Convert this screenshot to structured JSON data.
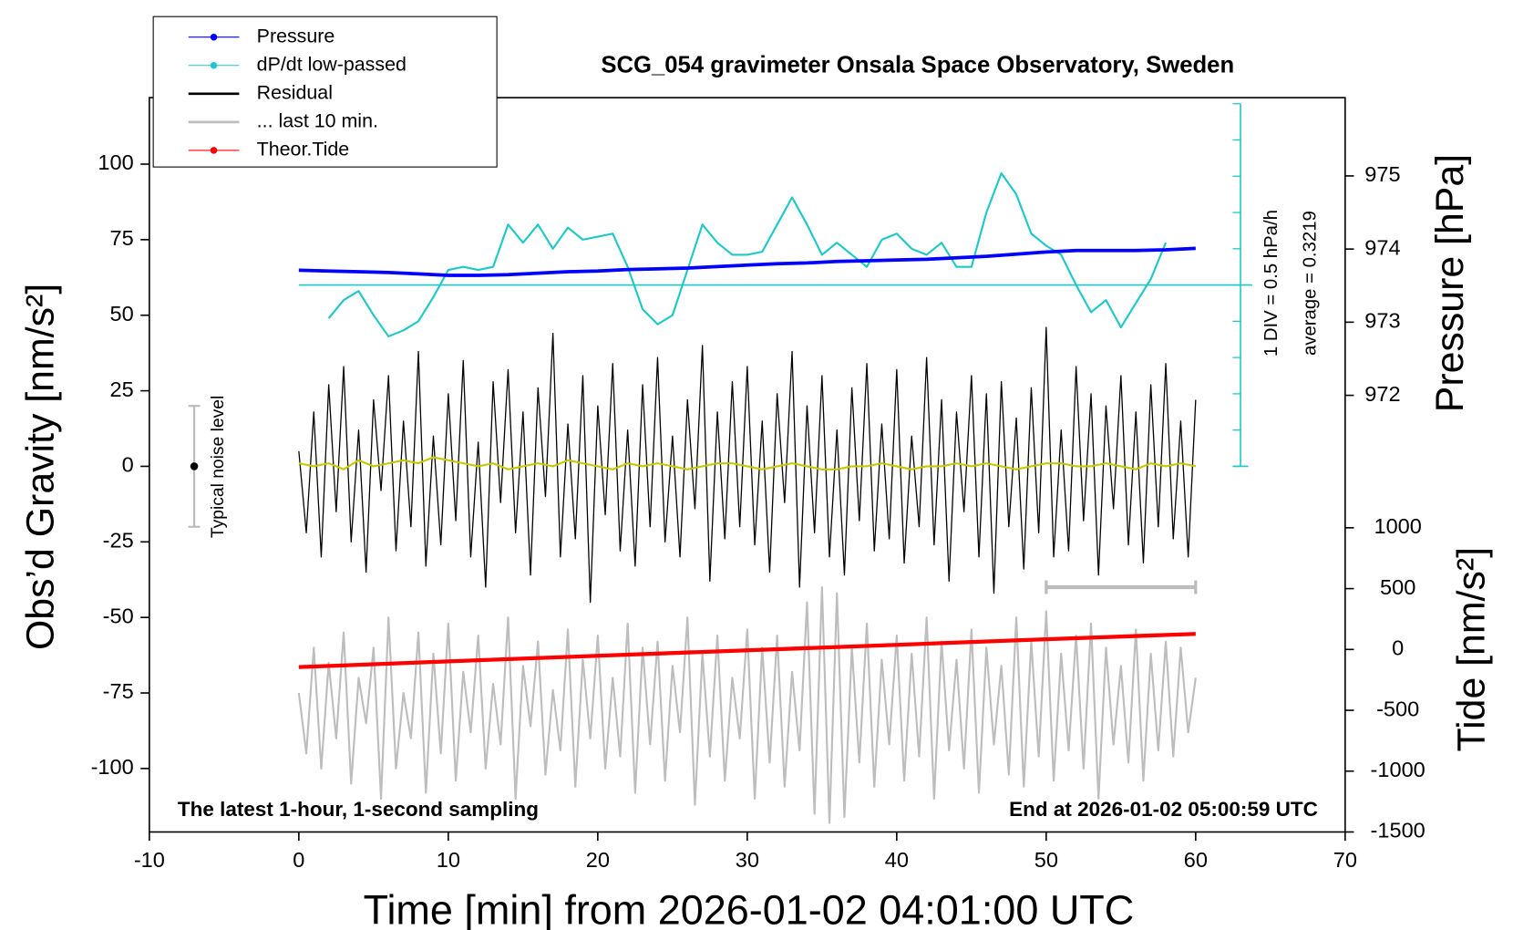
{
  "chart_data": {
    "type": "line",
    "title": "SCG_054 gravimeter Onsala Space Observatory, Sweden",
    "x_label": "Time [min] from 2026-01-02 04:01:00 UTC",
    "y_label": "Obs’d Gravity [nm/s²]",
    "y2_label": "Pressure [hPa]",
    "y3_label": "Tide [nm/s²]",
    "note_left": "The latest 1-hour, 1-second sampling",
    "note_right": "End at 2026-01-02 05:00:59 UTC",
    "dpdt_div_label": "1 DIV = 0.5 hPa/h",
    "dpdt_average_label": "average = 0.3219",
    "noise_label": "Typical noise level",
    "xlim": [
      -10,
      70
    ],
    "xticks": [
      -10,
      0,
      10,
      20,
      30,
      40,
      50,
      60,
      70
    ],
    "ylim": [
      -121,
      122
    ],
    "yticks": [
      -100,
      -75,
      -50,
      -25,
      0,
      25,
      50,
      75,
      100
    ],
    "y2lim": [
      966.03,
      976.07
    ],
    "y2ticks": [
      972,
      973,
      974,
      975
    ],
    "y3lim": [
      -1500,
      4535
    ],
    "y3ticks": [
      -1500,
      -1000,
      -500,
      0,
      500,
      1000
    ],
    "dpdt_axis_x": 63,
    "dpdt_ticks": [
      0,
      12,
      24,
      36,
      48,
      60,
      72,
      84,
      96,
      108,
      120
    ],
    "dpdt_average": 60,
    "noise_level": {
      "x": -7,
      "value": 0,
      "low": -20,
      "high": 20
    },
    "last10_bracket": {
      "x": [
        50,
        60
      ],
      "y": -40
    },
    "series": [
      {
        "name": "Pressure",
        "color": "#0000ff",
        "axis": "y2",
        "marker": true,
        "width": 3.5,
        "x": [
          0,
          2,
          4,
          6,
          8,
          10,
          12,
          14,
          16,
          18,
          20,
          22,
          24,
          26,
          28,
          30,
          32,
          34,
          36,
          38,
          40,
          42,
          44,
          46,
          48,
          50,
          52,
          54,
          56,
          58,
          60
        ],
        "values": [
          973.71,
          973.7,
          973.69,
          973.68,
          973.66,
          973.64,
          973.64,
          973.65,
          973.67,
          973.69,
          973.7,
          973.72,
          973.73,
          973.74,
          973.76,
          973.78,
          973.8,
          973.81,
          973.83,
          973.84,
          973.85,
          973.86,
          973.88,
          973.9,
          973.93,
          973.96,
          973.98,
          973.98,
          973.98,
          973.99,
          974.01
        ]
      },
      {
        "name": "dP/dt low-passed",
        "color": "#1ec8c8",
        "marker": true,
        "width": 2,
        "x": [
          2,
          3,
          4,
          5,
          6,
          7,
          8,
          9,
          10,
          11,
          12,
          13,
          14,
          15,
          16,
          17,
          18,
          19,
          20,
          21,
          22,
          23,
          24,
          25,
          26,
          27,
          28,
          29,
          30,
          31,
          32,
          33,
          34,
          35,
          36,
          37,
          38,
          39,
          40,
          41,
          42,
          43,
          44,
          45,
          46,
          47,
          48,
          49,
          50,
          51,
          52,
          53,
          54,
          55,
          56,
          57,
          58
        ],
        "values": [
          49,
          55,
          58,
          50,
          43,
          45,
          48,
          56,
          65,
          66,
          65,
          66,
          80,
          74,
          80,
          72,
          79,
          75,
          76,
          77,
          66,
          52,
          47,
          50,
          65,
          80,
          74,
          70,
          70,
          71,
          80,
          89,
          80,
          70,
          74,
          70,
          66,
          75,
          77,
          72,
          70,
          74,
          66,
          66,
          84,
          97,
          90,
          77,
          73,
          70,
          60,
          51,
          55,
          46,
          54,
          62,
          74
        ]
      },
      {
        "name": "Residual",
        "color": "#000000",
        "width": 1.2,
        "x": [
          0,
          0.5,
          1,
          1.5,
          2,
          2.5,
          3,
          3.5,
          4,
          4.5,
          5,
          5.5,
          6,
          6.5,
          7,
          7.5,
          8,
          8.5,
          9,
          9.5,
          10,
          10.5,
          11,
          11.5,
          12,
          12.5,
          13,
          13.5,
          14,
          14.5,
          15,
          15.5,
          16,
          16.5,
          17,
          17.5,
          18,
          18.5,
          19,
          19.5,
          20,
          20.5,
          21,
          21.5,
          22,
          22.5,
          23,
          23.5,
          24,
          24.5,
          25,
          25.5,
          26,
          26.5,
          27,
          27.5,
          28,
          28.5,
          29,
          29.5,
          30,
          30.5,
          31,
          31.5,
          32,
          32.5,
          33,
          33.5,
          34,
          34.5,
          35,
          35.5,
          36,
          36.5,
          37,
          37.5,
          38,
          38.5,
          39,
          39.5,
          40,
          40.5,
          41,
          41.5,
          42,
          42.5,
          43,
          43.5,
          44,
          44.5,
          45,
          45.5,
          46,
          46.5,
          47,
          47.5,
          48,
          48.5,
          49,
          49.5,
          50,
          50.5,
          51,
          51.5,
          52,
          52.5,
          53,
          53.5,
          54,
          54.5,
          55,
          55.5,
          56,
          56.5,
          57,
          57.5,
          58,
          58.5,
          59,
          59.5,
          60
        ],
        "values": [
          5,
          -22,
          18,
          -30,
          27,
          -15,
          33,
          -25,
          12,
          -35,
          22,
          -8,
          30,
          -28,
          15,
          -20,
          38,
          -33,
          10,
          -26,
          24,
          -18,
          35,
          -30,
          8,
          -40,
          28,
          -12,
          32,
          -22,
          18,
          -36,
          26,
          -10,
          44,
          -30,
          14,
          -24,
          30,
          -45,
          20,
          -16,
          34,
          -28,
          12,
          -33,
          27,
          -20,
          36,
          -25,
          10,
          -30,
          22,
          -14,
          40,
          -38,
          18,
          -24,
          28,
          -20,
          33,
          -26,
          15,
          -35,
          24,
          -12,
          38,
          -40,
          20,
          -22,
          30,
          -30,
          12,
          -36,
          26,
          -18,
          34,
          -28,
          14,
          -24,
          32,
          -32,
          10,
          -20,
          36,
          -26,
          22,
          -38,
          18,
          -15,
          30,
          -30,
          24,
          -42,
          28,
          -20,
          16,
          -34,
          26,
          -22,
          46,
          -30,
          12,
          -28,
          33,
          -18,
          24,
          -36,
          20,
          -14,
          30,
          -26,
          18,
          -32,
          27,
          -20,
          34,
          -24,
          15,
          -30,
          22
        ]
      },
      {
        "name": "... last 10 min.",
        "color": "#bdbdbd",
        "width": 2,
        "x": [
          0,
          0.5,
          1,
          1.5,
          2,
          2.5,
          3,
          3.5,
          4,
          4.5,
          5,
          5.5,
          6,
          6.5,
          7,
          7.5,
          8,
          8.5,
          9,
          9.5,
          10,
          10.5,
          11,
          11.5,
          12,
          12.5,
          13,
          13.5,
          14,
          14.5,
          15,
          15.5,
          16,
          16.5,
          17,
          17.5,
          18,
          18.5,
          19,
          19.5,
          20,
          20.5,
          21,
          21.5,
          22,
          22.5,
          23,
          23.5,
          24,
          24.5,
          25,
          25.5,
          26,
          26.5,
          27,
          27.5,
          28,
          28.5,
          29,
          29.5,
          30,
          30.5,
          31,
          31.5,
          32,
          32.5,
          33,
          33.5,
          34,
          34.5,
          35,
          35.5,
          36,
          36.5,
          37,
          37.5,
          38,
          38.5,
          39,
          39.5,
          40,
          40.5,
          41,
          41.5,
          42,
          42.5,
          43,
          43.5,
          44,
          44.5,
          45,
          45.5,
          46,
          46.5,
          47,
          47.5,
          48,
          48.5,
          49,
          49.5,
          50,
          50.5,
          51,
          51.5,
          52,
          52.5,
          53,
          53.5,
          54,
          54.5,
          55,
          55.5,
          56,
          56.5,
          57,
          57.5,
          58,
          58.5,
          59,
          59.5,
          60
        ],
        "values": [
          -75,
          -95,
          -60,
          -100,
          -65,
          -90,
          -55,
          -105,
          -70,
          -85,
          -60,
          -110,
          -50,
          -100,
          -75,
          -90,
          -55,
          -108,
          -62,
          -95,
          -52,
          -104,
          -68,
          -88,
          -56,
          -100,
          -72,
          -92,
          -50,
          -110,
          -66,
          -86,
          -58,
          -102,
          -74,
          -94,
          -54,
          -106,
          -64,
          -90,
          -56,
          -100,
          -70,
          -96,
          -52,
          -108,
          -60,
          -92,
          -58,
          -104,
          -66,
          -88,
          -50,
          -112,
          -62,
          -96,
          -56,
          -104,
          -70,
          -90,
          -54,
          -110,
          -60,
          -98,
          -56,
          -106,
          -68,
          -94,
          -45,
          -115,
          -40,
          -118,
          -42,
          -116,
          -60,
          -98,
          -52,
          -106,
          -64,
          -92,
          -56,
          -104,
          -62,
          -96,
          -50,
          -110,
          -58,
          -94,
          -64,
          -100,
          -54,
          -108,
          -60,
          -92,
          -66,
          -102,
          -50,
          -106,
          -58,
          -96,
          -48,
          -104,
          -62,
          -94,
          -56,
          -100,
          -52,
          -110,
          -60,
          -92,
          -66,
          -98,
          -54,
          -104,
          -62,
          -94,
          -58,
          -96,
          -60,
          -88,
          -70
        ]
      },
      {
        "name": "Theor.Tide",
        "color": "#ff0000",
        "axis": "y3",
        "marker": true,
        "width": 4,
        "x": [
          0,
          10,
          20,
          30,
          40,
          50,
          60
        ],
        "values": [
          -145,
          -98,
          -52,
          -7,
          38,
          84,
          128
        ]
      },
      {
        "color": "#c8c800",
        "width": 2,
        "x": [
          0,
          1,
          2,
          3,
          4,
          5,
          6,
          7,
          8,
          9,
          10,
          11,
          12,
          13,
          14,
          15,
          16,
          17,
          18,
          19,
          20,
          21,
          22,
          23,
          24,
          25,
          26,
          27,
          28,
          29,
          30,
          31,
          32,
          33,
          34,
          35,
          36,
          37,
          38,
          39,
          40,
          41,
          42,
          43,
          44,
          45,
          46,
          47,
          48,
          49,
          50,
          51,
          52,
          53,
          54,
          55,
          56,
          57,
          58,
          59,
          60
        ],
        "values": [
          1,
          0,
          1,
          -1,
          2,
          0,
          1,
          2,
          1,
          3,
          2,
          1,
          0,
          1,
          -1,
          0,
          1,
          0,
          2,
          1,
          0,
          -1,
          1,
          0,
          1,
          0,
          -1,
          0,
          1,
          1,
          0,
          -1,
          0,
          1,
          0,
          -1,
          -1,
          0,
          0,
          1,
          0,
          -1,
          0,
          0,
          1,
          0,
          1,
          0,
          -1,
          0,
          1,
          1,
          0,
          0,
          1,
          0,
          -1,
          1,
          0,
          1,
          0
        ]
      }
    ]
  }
}
